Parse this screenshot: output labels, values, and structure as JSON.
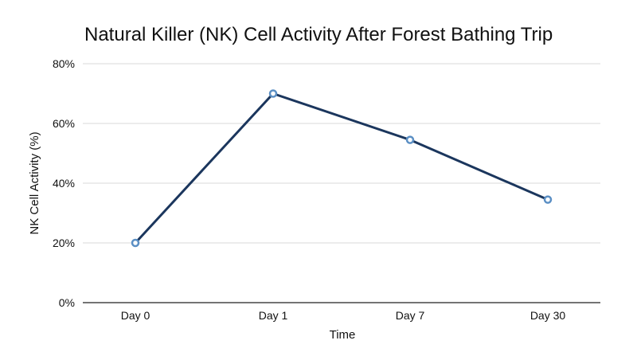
{
  "chart_data": {
    "type": "line",
    "title": "Natural Killer (NK) Cell Activity After Forest Bathing Trip",
    "xlabel": "Time",
    "ylabel": "NK Cell Activity (%)",
    "categories": [
      "Day 0",
      "Day 1",
      "Day 7",
      "Day 30"
    ],
    "series": [
      {
        "values": [
          20,
          70,
          54.5,
          34.5
        ]
      }
    ],
    "ylim": [
      0,
      80
    ],
    "yticks": [
      0,
      20,
      40,
      60,
      80
    ],
    "ytick_labels": [
      "0%",
      "20%",
      "40%",
      "60%",
      "80%"
    ],
    "grid": true,
    "legend": "none",
    "colors": {
      "line": "#1b365d",
      "marker": "#5b8fc4"
    }
  }
}
